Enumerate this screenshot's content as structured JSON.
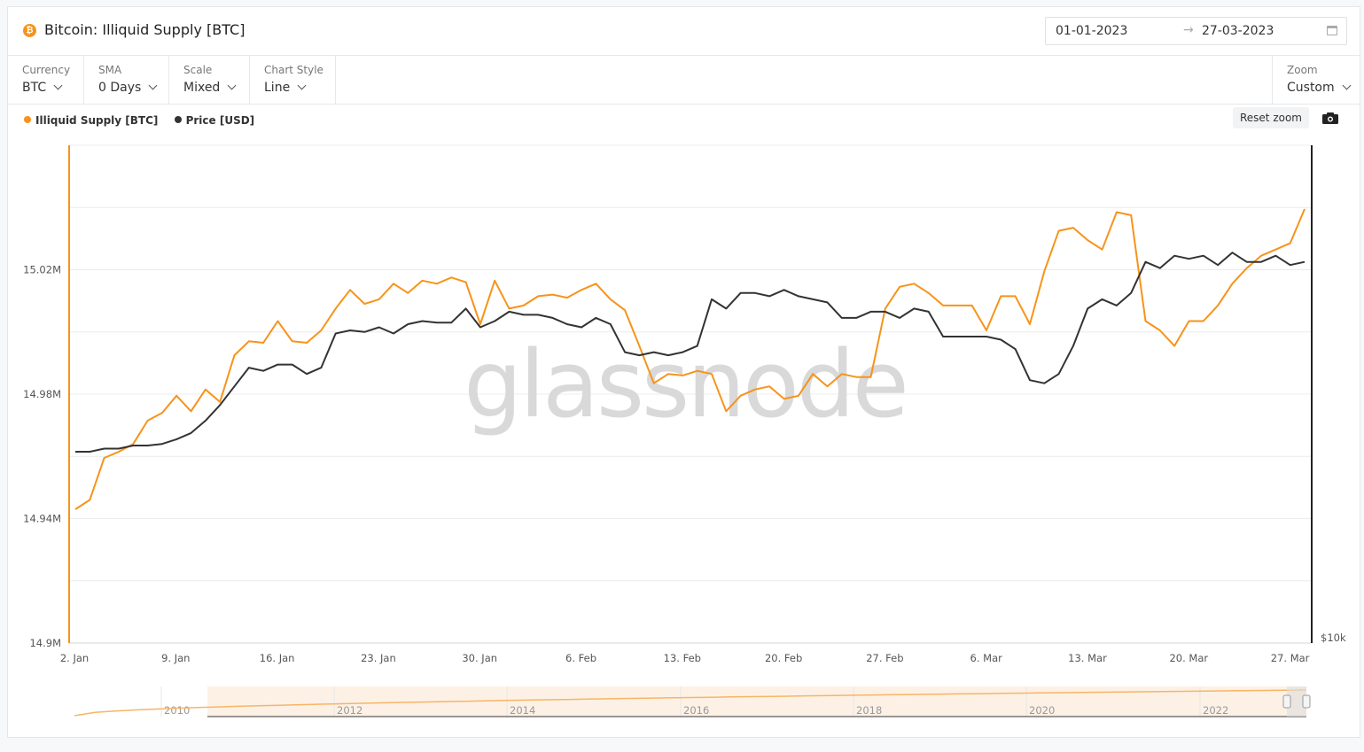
{
  "header": {
    "icon_glyph": "₿",
    "title": "Bitcoin: Illiquid Supply [BTC]",
    "date_from": "01-01-2023",
    "date_arrow": "→",
    "date_to": "27-03-2023"
  },
  "controls": [
    {
      "label": "Currency",
      "value": "BTC"
    },
    {
      "label": "SMA",
      "value": "0 Days"
    },
    {
      "label": "Scale",
      "value": "Mixed"
    },
    {
      "label": "Chart Style",
      "value": "Line"
    }
  ],
  "zoom": {
    "label": "Zoom",
    "value": "Custom"
  },
  "legend": [
    {
      "name": "Illiquid Supply [BTC]",
      "color": "#f7931a"
    },
    {
      "name": "Price [USD]",
      "color": "#333333"
    }
  ],
  "reset_zoom_label": "Reset zoom",
  "watermark": "glassnode",
  "chart_data": {
    "type": "line",
    "x_tick_labels": [
      "2. Jan",
      "9. Jan",
      "16. Jan",
      "23. Jan",
      "30. Jan",
      "6. Feb",
      "13. Feb",
      "20. Feb",
      "27. Feb",
      "6. Mar",
      "13. Mar",
      "20. Mar",
      "27. Mar"
    ],
    "y_left": {
      "tick_labels": [
        "15.02M",
        "14.98M",
        "14.94M",
        "14.9M"
      ],
      "ticks": [
        15.02,
        14.98,
        14.94,
        14.9
      ],
      "range": [
        14.9,
        15.06
      ],
      "unit": "M BTC"
    },
    "y_right": {
      "tick_labels": [
        "$10k"
      ]
    },
    "grid": true,
    "legend_position": "top-left",
    "series": [
      {
        "name": "Illiquid Supply [BTC]",
        "axis": "left",
        "color": "#f7931a",
        "values": [
          14.943,
          14.946,
          14.9595,
          14.9615,
          14.964,
          14.9715,
          14.974,
          14.9795,
          14.9745,
          14.9815,
          14.9775,
          14.9925,
          14.997,
          14.9965,
          15.0035,
          14.997,
          14.9965,
          15.0005,
          15.0075,
          15.0135,
          15.009,
          15.0105,
          15.0155,
          15.0125,
          15.0165,
          15.0155,
          15.0175,
          15.016,
          15.0025,
          15.0165,
          15.0075,
          15.0085,
          15.0115,
          15.012,
          15.011,
          15.0135,
          15.0155,
          15.0105,
          15.007,
          14.9955,
          14.9835,
          14.9865,
          14.986,
          14.9875,
          14.9865,
          14.9745,
          14.9795,
          14.9815,
          14.9825,
          14.9785,
          14.9795,
          14.9865,
          14.9825,
          14.9865,
          14.9855,
          14.9855,
          15.0075,
          15.0145,
          15.0155,
          15.0125,
          15.0085,
          15.0085,
          15.0085,
          15.0005,
          15.0115,
          15.0115,
          15.0025,
          15.0195,
          15.0325,
          15.0335,
          15.0295,
          15.0265,
          15.0385,
          15.0375,
          15.0035,
          15.0005,
          14.9955,
          15.0035,
          15.0035,
          15.0085,
          15.0155,
          15.0205,
          15.0245,
          15.0265,
          15.0285,
          15.0395
        ]
      },
      {
        "name": "Price [USD]",
        "axis": "right",
        "color": "#333333",
        "values": [
          14.9615,
          14.9615,
          14.9625,
          14.9625,
          14.9635,
          14.9635,
          14.964,
          14.9655,
          14.9675,
          14.9715,
          14.9765,
          14.9825,
          14.9885,
          14.9875,
          14.9895,
          14.9895,
          14.9865,
          14.9885,
          14.9995,
          15.0005,
          15.0,
          15.0015,
          14.9995,
          15.0025,
          15.0035,
          15.003,
          15.003,
          15.0075,
          15.0015,
          15.0035,
          15.0065,
          15.0055,
          15.0055,
          15.0045,
          15.0025,
          15.0015,
          15.0045,
          15.0025,
          14.9935,
          14.9925,
          14.9935,
          14.9925,
          14.9935,
          14.9955,
          15.0105,
          15.0075,
          15.0125,
          15.0125,
          15.0115,
          15.0135,
          15.0115,
          15.0105,
          15.0095,
          15.0045,
          15.0045,
          15.0065,
          15.0065,
          15.0045,
          15.0075,
          15.0065,
          14.9985,
          14.9985,
          14.9985,
          14.9985,
          14.9975,
          14.9945,
          14.9845,
          14.9835,
          14.9865,
          14.9955,
          15.0075,
          15.0105,
          15.0085,
          15.0125,
          15.0225,
          15.0205,
          15.0245,
          15.0235,
          15.0245,
          15.0215,
          15.0255,
          15.0225,
          15.0225,
          15.0245,
          15.0215,
          15.0225
        ]
      }
    ],
    "navigator": {
      "tick_labels": [
        "2010",
        "2012",
        "2014",
        "2016",
        "2018",
        "2020",
        "2022"
      ]
    }
  }
}
